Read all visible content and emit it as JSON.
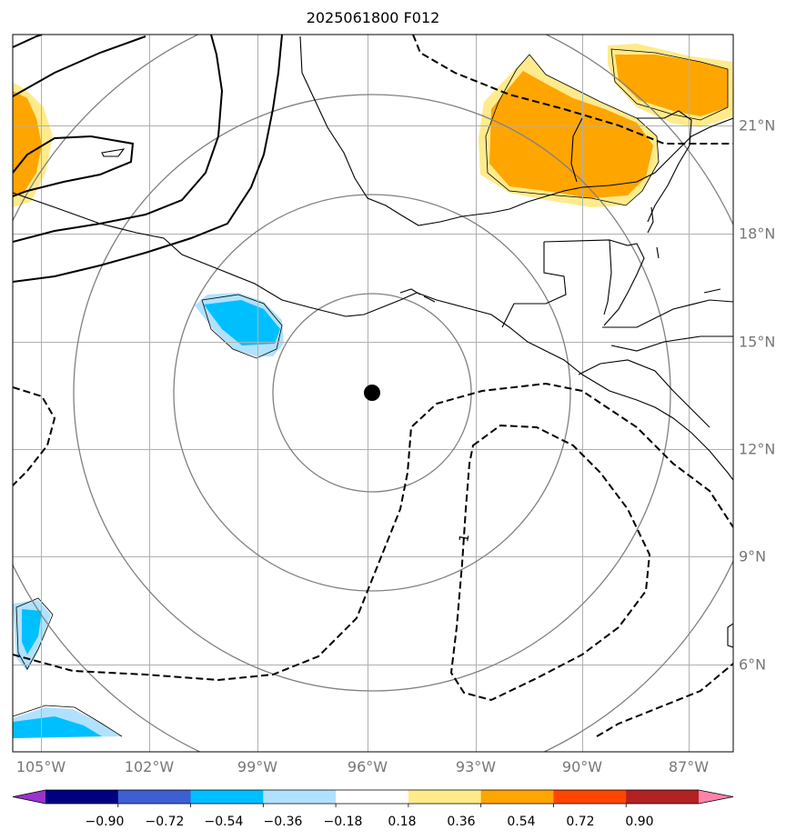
{
  "title": "2025061800 F012",
  "lon_labels": [
    "105°W",
    "102°W",
    "99°W",
    "96°W",
    "93°W",
    "90°W",
    "87°W"
  ],
  "lat_labels": [
    "21°N",
    "18°N",
    "15°N",
    "12°N",
    "9°N",
    "6°N"
  ],
  "contour_label": "1",
  "colorbar": {
    "ticks": [
      "−0.90",
      "−0.72",
      "−0.54",
      "−0.36",
      "−0.18",
      "0.18",
      "0.36",
      "0.54",
      "0.72",
      "0.90"
    ],
    "colors": [
      "#9933cc",
      "#000080",
      "#3d5fd0",
      "#00bfff",
      "#b0e2ff",
      "#ffffff",
      "#ffeb8c",
      "#ffa500",
      "#ff4500",
      "#b22222",
      "#ff82ab"
    ]
  },
  "colors": {
    "negative_fill": "#00bfff",
    "negative_fill_light": "#b0e2ff",
    "positive_fill": "#ffa500",
    "positive_fill_light": "#ffeb8c",
    "range_rings": "#808080",
    "grid": "#b0b0b0"
  },
  "center_marker": "storm-center"
}
